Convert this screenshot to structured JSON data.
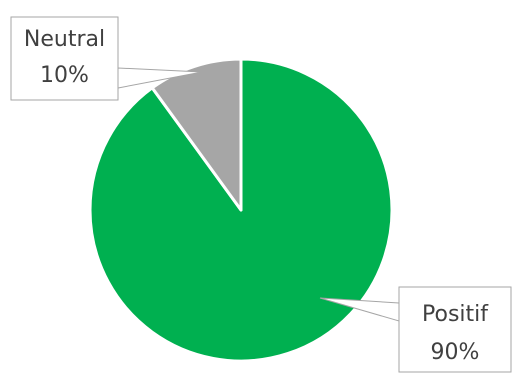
{
  "chart_data": {
    "type": "pie",
    "title": "",
    "start_angle_deg": 0,
    "direction": "clockwise",
    "slices": [
      {
        "label": "Positif",
        "value": 90,
        "value_label": "90%",
        "color": "#00b050"
      },
      {
        "label": "Neutral",
        "value": 10,
        "value_label": "10%",
        "color": "#a6a6a6"
      }
    ],
    "legend": "none",
    "slice_border_color": "#ffffff"
  }
}
